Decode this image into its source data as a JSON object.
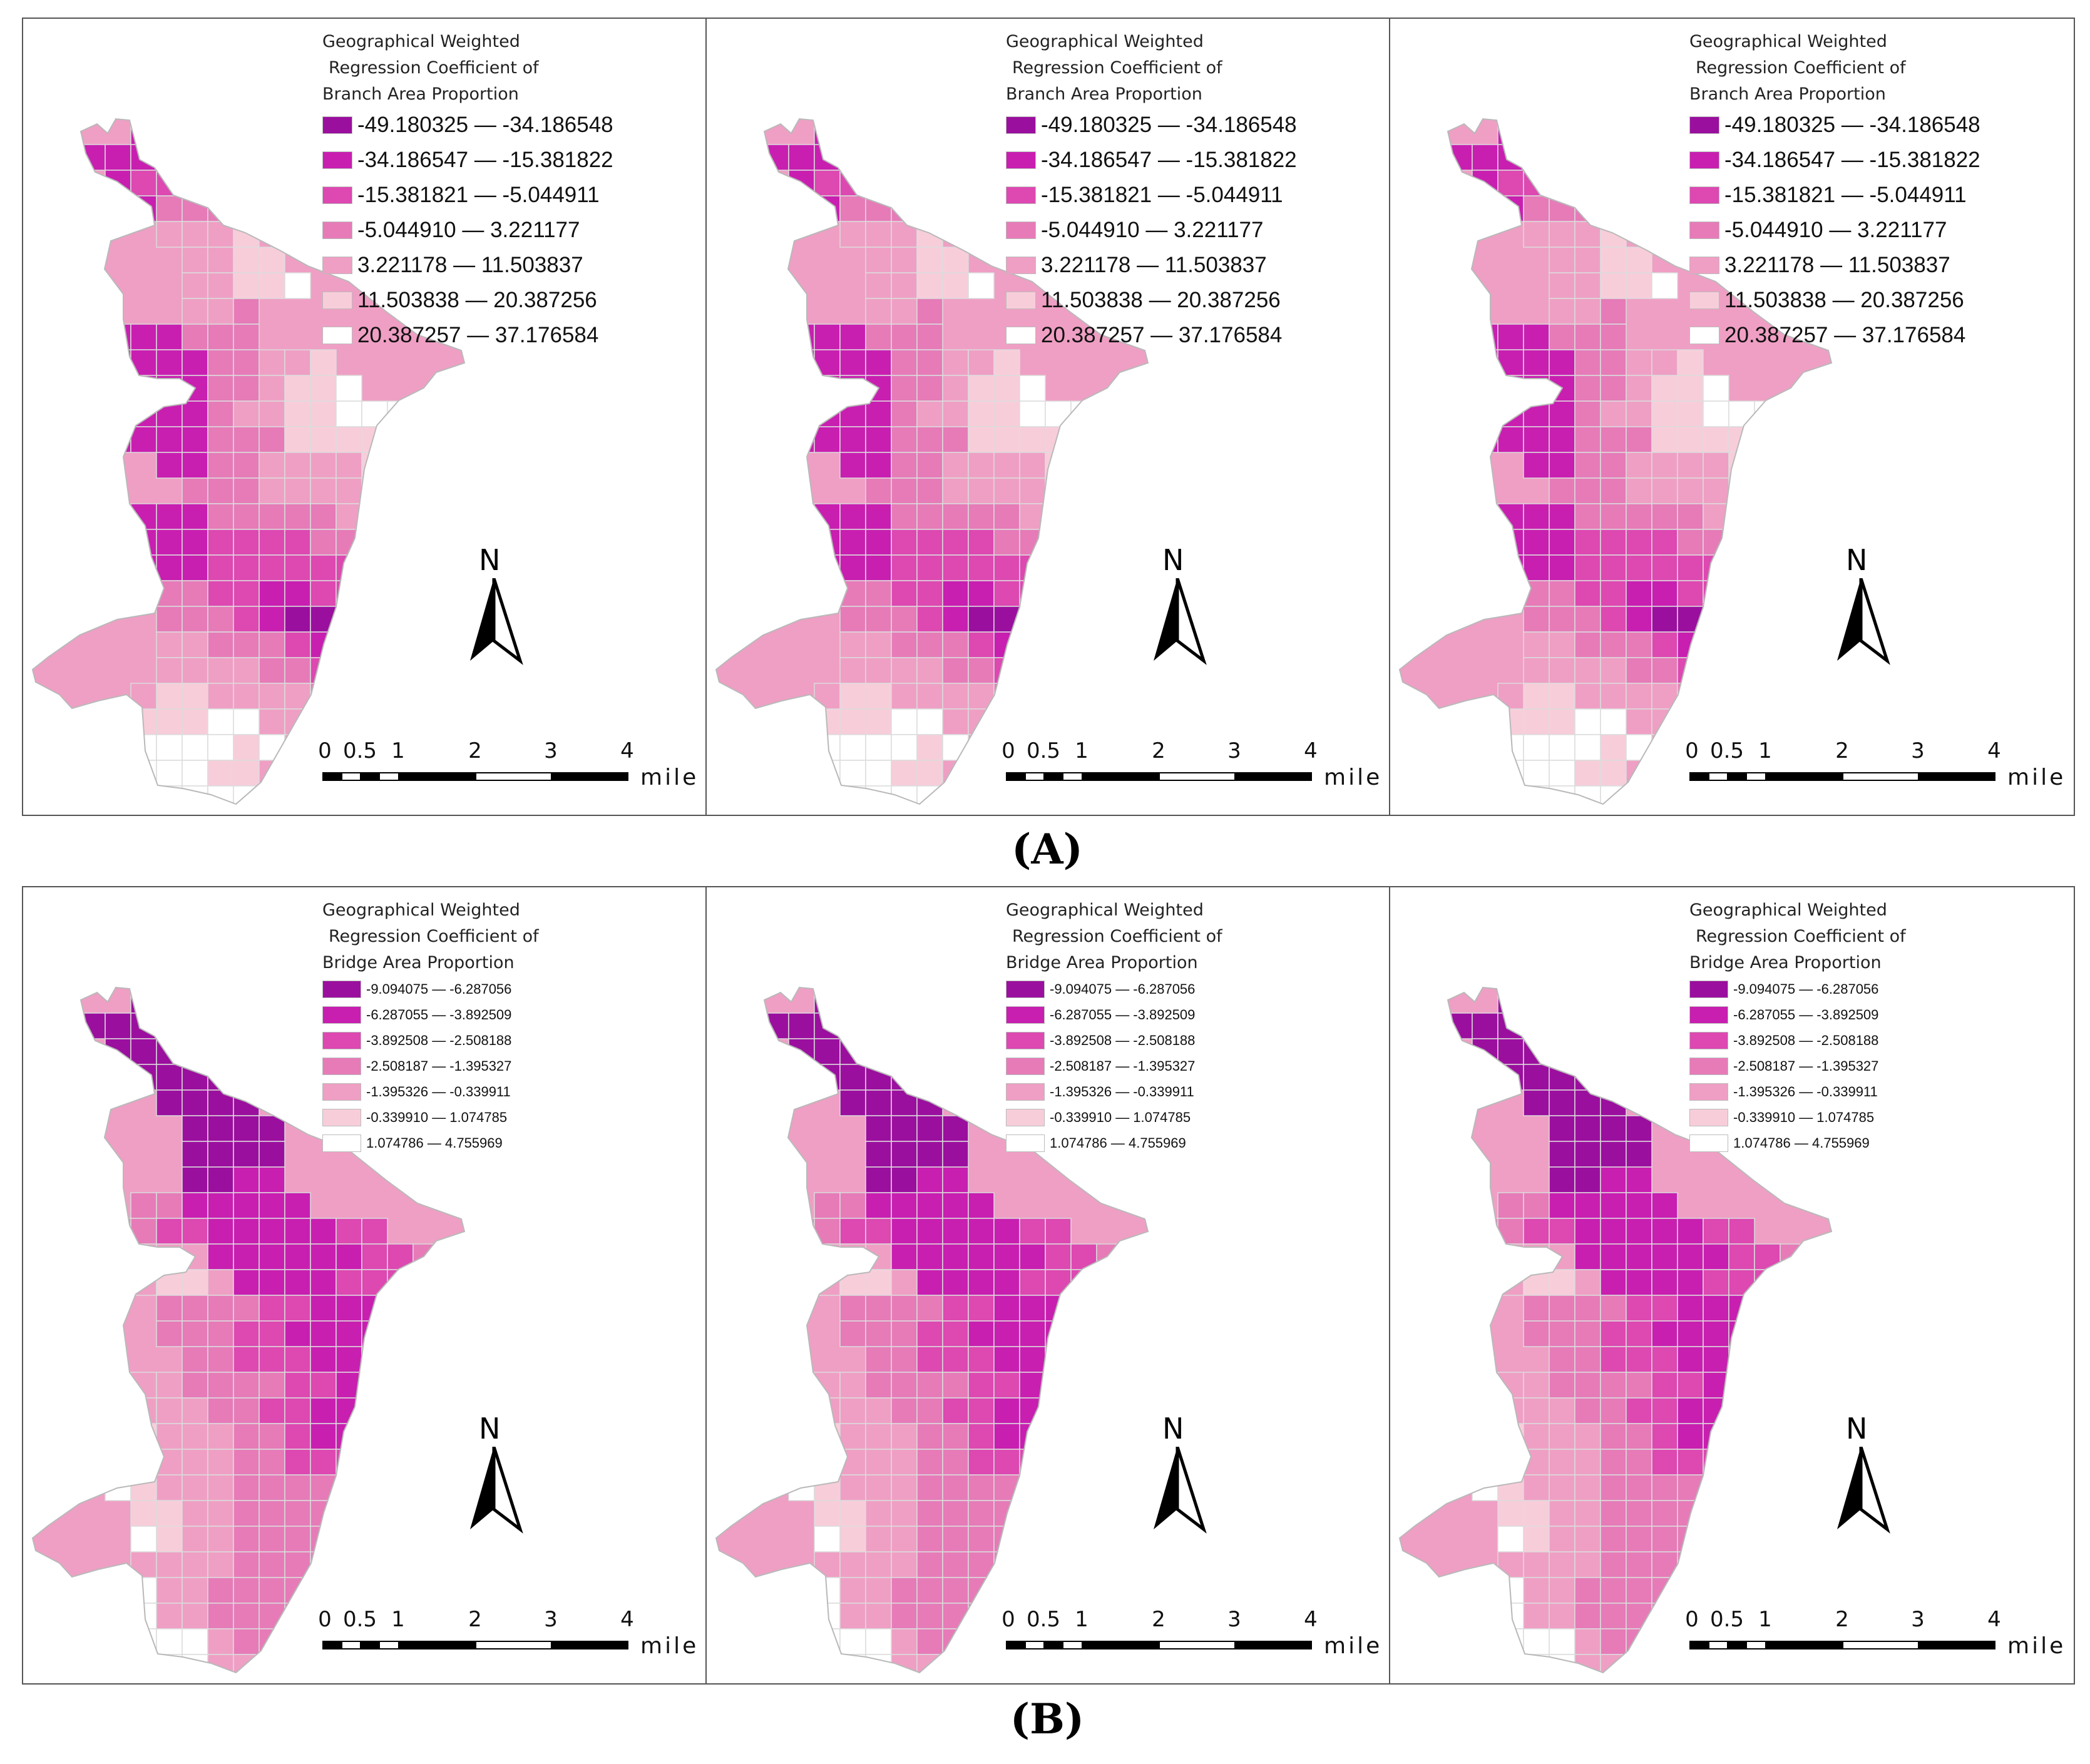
{
  "figure": {
    "rows": [
      {
        "caption": "(A)",
        "legend": {
          "title_lines": [
            "Geographical Weighted",
            "Regression Coefficient of",
            "Branch Area Proportion"
          ],
          "classes": [
            {
              "label": "-49.180325 — -34.186548",
              "color": "#9b0f9e"
            },
            {
              "label": "-34.186547 — -15.381822",
              "color": "#c81fb0"
            },
            {
              "label": "-15.381821 — -5.044911",
              "color": "#dd48b1"
            },
            {
              "label": "-5.044910 — 3.221177",
              "color": "#e67bb8"
            },
            {
              "label": "3.221178 — 11.503837",
              "color": "#ef9fc4"
            },
            {
              "label": "11.503838 — 20.387256",
              "color": "#f8cdda"
            },
            {
              "label": "20.387257 — 37.176584",
              "color": "#ffffff"
            }
          ]
        }
      },
      {
        "caption": "(B)",
        "legend": {
          "title_lines": [
            "Geographical Weighted",
            "Regression Coefficient of",
            "Bridge Area Proportion"
          ],
          "classes": [
            {
              "label": "-9.094075 — -6.287056",
              "color": "#9b0f9e"
            },
            {
              "label": "-6.287055 — -3.892509",
              "color": "#c81fb0"
            },
            {
              "label": "-3.892508 — -2.508188",
              "color": "#dd48b1"
            },
            {
              "label": "-2.508187 — -1.395327",
              "color": "#e67bb8"
            },
            {
              "label": "-1.395326 — -0.339911",
              "color": "#ef9fc4"
            },
            {
              "label": "-0.339910 — 1.074785",
              "color": "#f8cdda"
            },
            {
              "label": "1.074786 — 4.755969",
              "color": "#ffffff"
            }
          ]
        }
      }
    ],
    "north_label": "N",
    "scale_ticks": [
      "0",
      "0.5",
      "1",
      "2",
      "3",
      "4"
    ],
    "scale_unit": "mile",
    "outline_color": "#b9b9b9"
  }
}
